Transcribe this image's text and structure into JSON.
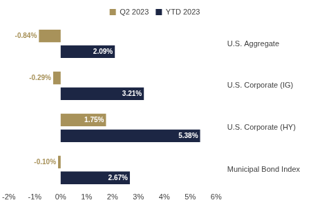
{
  "chart_data": {
    "type": "bar",
    "orientation": "horizontal",
    "categories": [
      "U.S. Aggregate",
      "U.S. Corporate (IG)",
      "U.S. Corporate (HY)",
      "Municipal Bond Index"
    ],
    "series": [
      {
        "name": "Q2 2023",
        "color": "#a8925a",
        "values": [
          -0.84,
          -0.29,
          1.75,
          -0.1
        ],
        "value_labels": [
          "-0.84%",
          "-0.29%",
          "1.75%",
          "-0.10%"
        ]
      },
      {
        "name": "YTD 2023",
        "color": "#1c2644",
        "values": [
          2.09,
          3.21,
          5.38,
          2.67
        ],
        "value_labels": [
          "2.09%",
          "3.21%",
          "5.38%",
          "2.67%"
        ]
      }
    ],
    "xlim": [
      -2,
      6
    ],
    "xticks": [
      {
        "value": -2,
        "label": "-2%"
      },
      {
        "value": -1,
        "label": "-1%"
      },
      {
        "value": 0,
        "label": "0%"
      },
      {
        "value": 1,
        "label": "1%"
      },
      {
        "value": 2,
        "label": "2%"
      },
      {
        "value": 3,
        "label": "3%"
      },
      {
        "value": 4,
        "label": "4%"
      },
      {
        "value": 5,
        "label": "5%"
      },
      {
        "value": 6,
        "label": "6%"
      }
    ],
    "grid": false,
    "legend": "top",
    "data_labels": true
  }
}
